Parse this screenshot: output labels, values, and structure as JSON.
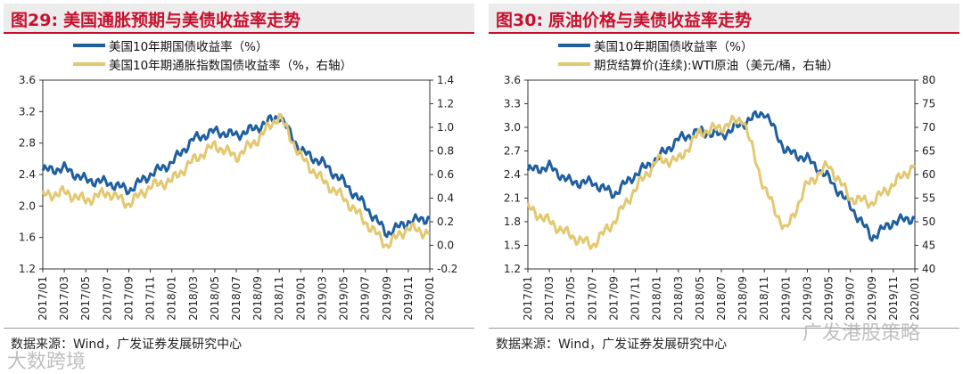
{
  "colors": {
    "blue": "#1f5f9e",
    "gold": "#e3c871",
    "title_red": "#c8102e"
  },
  "panels": [
    {
      "title_num": "图29:",
      "title_text": "美国通胀预期与美债收益率走势",
      "legend": [
        "美国10年期国债收益率（%）",
        "美国10年期通胀指数国债收益率（%，右轴）"
      ],
      "source": "数据来源：Wind，广发证券发展研究中心"
    },
    {
      "title_num": "图30:",
      "title_text": "原油价格与美债收益率走势",
      "legend": [
        "美国10年期国债收益率（%）",
        "期货结算价(连续):WTI原油（美元/桶，右轴）"
      ],
      "source": "数据来源：Wind，广发证券发展研究中心"
    }
  ],
  "watermarks": {
    "bottom_left": "大数跨境",
    "bottom_right": "广发港股策略"
  },
  "chart_data": [
    {
      "type": "line",
      "title": "美国通胀预期与美债收益率走势",
      "x": [
        "2017/01",
        "2017/03",
        "2017/05",
        "2017/07",
        "2017/09",
        "2017/11",
        "2018/01",
        "2018/03",
        "2018/05",
        "2018/07",
        "2018/09",
        "2018/11",
        "2019/01",
        "2019/03",
        "2019/05",
        "2019/07",
        "2019/09",
        "2019/11",
        "2020/01"
      ],
      "y_left": {
        "range": [
          1.2,
          3.6
        ],
        "ticks": [
          "1.2",
          "1.6",
          "2.0",
          "2.4",
          "2.8",
          "3.2",
          "3.6"
        ]
      },
      "y_right": {
        "range": [
          -0.2,
          1.4
        ],
        "ticks": [
          "-0.2",
          "0.0",
          "0.2",
          "0.4",
          "0.6",
          "0.8",
          "1.0",
          "1.2",
          "1.4"
        ]
      },
      "series": [
        {
          "name": "美国10年期国债收益率（%）",
          "axis": "left",
          "color": "blue",
          "values": [
            2.45,
            2.48,
            2.33,
            2.3,
            2.2,
            2.4,
            2.55,
            2.85,
            2.95,
            2.9,
            3.0,
            3.15,
            2.7,
            2.55,
            2.3,
            2.0,
            1.65,
            1.8,
            1.85
          ]
        },
        {
          "name": "美国10年期通胀指数国债收益率（%，右轴）",
          "axis": "right",
          "color": "gold",
          "values": [
            0.42,
            0.45,
            0.38,
            0.45,
            0.35,
            0.5,
            0.55,
            0.72,
            0.85,
            0.75,
            0.9,
            1.1,
            0.75,
            0.55,
            0.4,
            0.2,
            0.0,
            0.15,
            0.1
          ]
        }
      ]
    },
    {
      "type": "line",
      "title": "原油价格与美债收益率走势",
      "x": [
        "2017/01",
        "2017/03",
        "2017/05",
        "2017/07",
        "2017/09",
        "2017/11",
        "2018/01",
        "2018/03",
        "2018/05",
        "2018/07",
        "2018/09",
        "2018/11",
        "2019/01",
        "2019/03",
        "2019/05",
        "2019/07",
        "2019/09",
        "2019/11",
        "2020/01"
      ],
      "y_left": {
        "range": [
          1.2,
          3.6
        ],
        "ticks": [
          "1.2",
          "1.5",
          "1.8",
          "2.1",
          "2.4",
          "2.7",
          "3.0",
          "3.3",
          "3.6"
        ]
      },
      "y_right": {
        "range": [
          40,
          80
        ],
        "ticks": [
          "40",
          "45",
          "50",
          "55",
          "60",
          "65",
          "70",
          "75",
          "80"
        ]
      },
      "series": [
        {
          "name": "美国10年期国债收益率（%）",
          "axis": "left",
          "color": "blue",
          "values": [
            2.45,
            2.5,
            2.3,
            2.3,
            2.15,
            2.4,
            2.6,
            2.85,
            2.95,
            2.9,
            3.05,
            3.2,
            2.7,
            2.6,
            2.35,
            2.0,
            1.6,
            1.8,
            1.85
          ]
        },
        {
          "name": "期货结算价(连续):WTI原油（美元/桶，右轴）",
          "axis": "right",
          "color": "gold",
          "values": [
            53,
            50,
            47,
            45,
            50,
            57,
            63,
            63,
            69,
            70,
            72,
            57,
            48,
            58,
            62,
            55,
            54,
            58,
            62
          ]
        }
      ]
    }
  ]
}
